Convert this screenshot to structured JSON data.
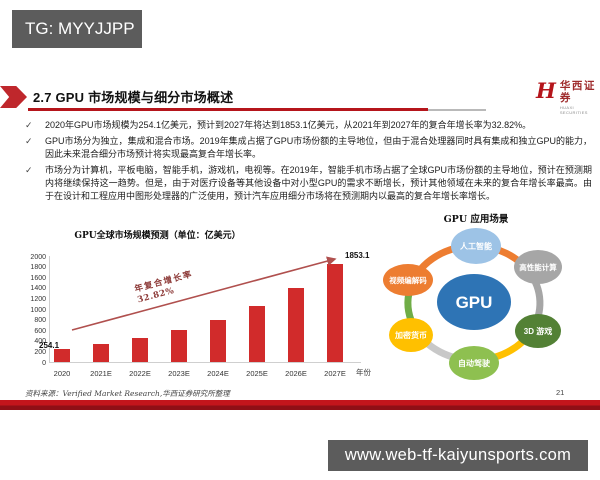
{
  "colors": {
    "accent-red": "#b5151b",
    "bar-red": "#d12b2b",
    "overlay-gray": "#5c5c5c"
  },
  "overlay": {
    "tg_label": "TG: MYYJJPP",
    "url_label": "www.web-tf-kaiyunsports.com"
  },
  "header": {
    "title": "2.7 GPU 市场规模与细分市场概述",
    "logo_cn": "华西证券",
    "logo_en": "HUAXI SECURITIES",
    "logo_glyph": "H"
  },
  "bullets": [
    "2020年GPU市场规模为254.1亿美元，预计到2027年将达到1853.1亿美元，从2021年到2027年的复合年增长率为32.82%。",
    "GPU市场分为独立，集成和混合市场。2019年集成占据了GPU市场份额的主导地位，但由于混合处理器同时具有集成和独立GPU的能力，因此未来混合细分市场预计将实现最高复合年增长率。",
    "市场分为计算机，平板电脑，智能手机，游戏机，电视等。在2019年，智能手机市场占据了全球GPU市场份额的主导地位，预计在预测期内将继续保持这一趋势。但是，由于对医疗设备等其他设备中对小型GPU的需求不断增长，预计其他领域在未来的复合年增长率最高。由于在设计和工程应用中图形处理器的广泛使用，预计汽车应用细分市场将在预测期内以最高的复合年增长率增长。"
  ],
  "chart_data": {
    "type": "bar",
    "title": "GPU全球市场规模预测（单位：亿美元）",
    "categories": [
      "2020",
      "2021E",
      "2022E",
      "2023E",
      "2024E",
      "2025E",
      "2026E",
      "2027E"
    ],
    "values": [
      254.1,
      337.5,
      448.2,
      595.3,
      790.7,
      1050.1,
      1394.7,
      1853.1
    ],
    "first_bar_label": "254.1",
    "last_bar_label": "1853.1",
    "xlabel": "年份",
    "ylabel": "",
    "ylim": [
      0,
      2000
    ],
    "yticks": [
      0,
      200,
      400,
      600,
      800,
      1000,
      1200,
      1400,
      1600,
      1800,
      2000
    ],
    "annotation": {
      "line1": "年复合增长率",
      "line2": "32.82%"
    }
  },
  "diagram": {
    "title": "GPU 应用场景",
    "center": {
      "label": "GPU",
      "color": "#2e74b5"
    },
    "nodes": [
      {
        "label": "人工智能",
        "color": "#9dc3e6"
      },
      {
        "label": "高性能计算",
        "color": "#a6a6a6"
      },
      {
        "label": "3D 游戏",
        "color": "#538135"
      },
      {
        "label": "自动驾驶",
        "color": "#8ec050"
      },
      {
        "label": "加密货币",
        "color": "#ffc000"
      },
      {
        "label": "视频编解码",
        "color": "#ed7d31"
      }
    ],
    "ring": [
      "#ed7d31",
      "#a6a6a6",
      "#ffc000",
      "#c8c8c8",
      "#70ad47",
      "#ed7d31"
    ]
  },
  "footer": {
    "source": "资料来源：Verified Market Research,华西证券研究所整理",
    "page": "21"
  }
}
